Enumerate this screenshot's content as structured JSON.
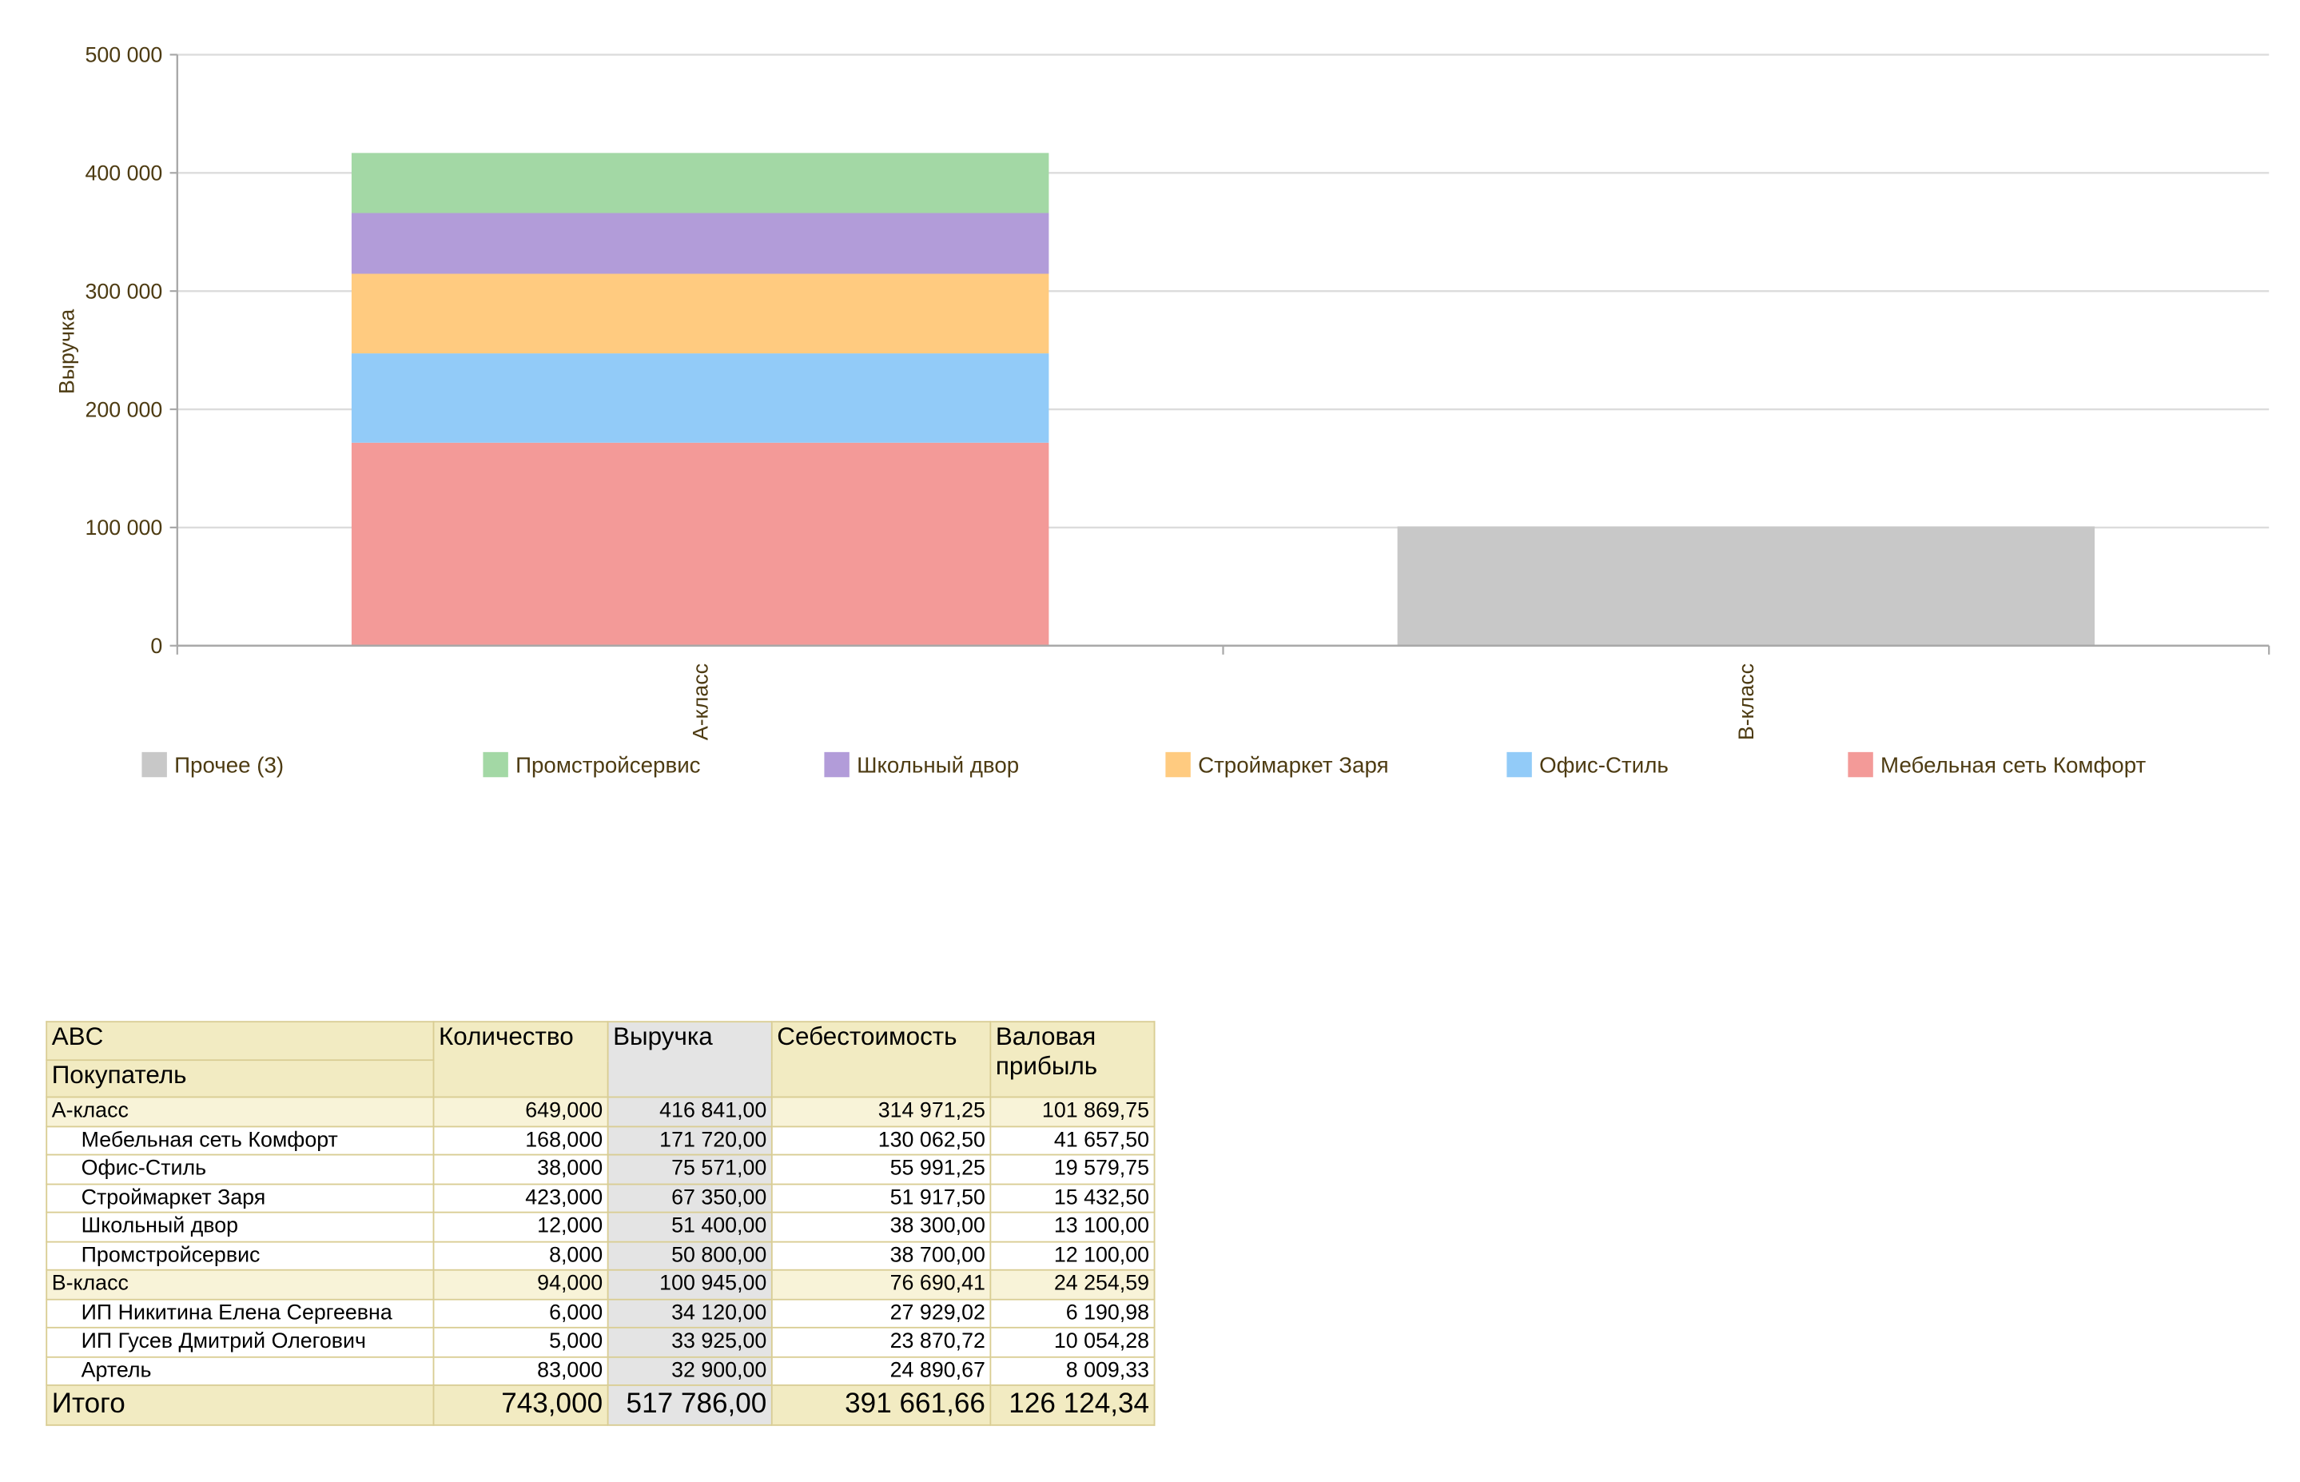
{
  "chart_data": {
    "type": "bar",
    "stacked": true,
    "ylabel": "Выручка",
    "ylim": [
      0,
      500000
    ],
    "yticks": [
      0,
      100000,
      200000,
      300000,
      400000,
      500000
    ],
    "ytick_labels": [
      "0",
      "100 000",
      "200 000",
      "300 000",
      "400 000",
      "500 000"
    ],
    "categories": [
      "А-класс",
      "В-класс"
    ],
    "grid": "horizontal",
    "legend_position": "bottom",
    "series": [
      {
        "name": "Мебельная сеть Комфорт",
        "color": "#f39a98",
        "values": [
          171720,
          0
        ]
      },
      {
        "name": "Офис-Стиль",
        "color": "#92cbf8",
        "values": [
          75571,
          0
        ]
      },
      {
        "name": "Строймаркет Заря",
        "color": "#ffcb80",
        "values": [
          67350,
          0
        ]
      },
      {
        "name": "Школьный двор",
        "color": "#b29cd9",
        "values": [
          51400,
          0
        ]
      },
      {
        "name": "Промстройсервис",
        "color": "#a3d8a5",
        "values": [
          50800,
          0
        ]
      },
      {
        "name": "Прочее (3)",
        "color": "#c8c8c8",
        "values": [
          0,
          100945
        ]
      }
    ],
    "legend_order": [
      "Прочее (3)",
      "Промстройсервис",
      "Школьный двор",
      "Строймаркет Заря",
      "Офис-Стиль",
      "Мебельная сеть Комфорт"
    ]
  },
  "table": {
    "header": {
      "abc": "ABC",
      "buyer": "Покупатель",
      "qty": "Количество",
      "revenue": "Выручка",
      "cost": "Себестоимость",
      "gross_line1": "Валовая",
      "gross_line2": "прибыль"
    },
    "rows": [
      {
        "kind": "group",
        "name": "А-класс",
        "qty": "649,000",
        "revenue": "416 841,00",
        "cost": "314 971,25",
        "gross": "101 869,75"
      },
      {
        "kind": "item",
        "name": "Мебельная сеть Комфорт",
        "qty": "168,000",
        "revenue": "171 720,00",
        "cost": "130 062,50",
        "gross": "41 657,50"
      },
      {
        "kind": "item",
        "name": "Офис-Стиль",
        "qty": "38,000",
        "revenue": "75 571,00",
        "cost": "55 991,25",
        "gross": "19 579,75"
      },
      {
        "kind": "item",
        "name": "Строймаркет Заря",
        "qty": "423,000",
        "revenue": "67 350,00",
        "cost": "51 917,50",
        "gross": "15 432,50"
      },
      {
        "kind": "item",
        "name": "Школьный двор",
        "qty": "12,000",
        "revenue": "51 400,00",
        "cost": "38 300,00",
        "gross": "13 100,00"
      },
      {
        "kind": "item",
        "name": "Промстройсервис",
        "qty": "8,000",
        "revenue": "50 800,00",
        "cost": "38 700,00",
        "gross": "12 100,00"
      },
      {
        "kind": "group",
        "name": "В-класс",
        "qty": "94,000",
        "revenue": "100 945,00",
        "cost": "76 690,41",
        "gross": "24 254,59"
      },
      {
        "kind": "item",
        "name": "ИП Никитина Елена Сергеевна",
        "qty": "6,000",
        "revenue": "34 120,00",
        "cost": "27 929,02",
        "gross": "6 190,98"
      },
      {
        "kind": "item",
        "name": "ИП Гусев Дмитрий Олегович",
        "qty": "5,000",
        "revenue": "33 925,00",
        "cost": "23 870,72",
        "gross": "10 054,28"
      },
      {
        "kind": "item",
        "name": "Артель",
        "qty": "83,000",
        "revenue": "32 900,00",
        "cost": "24 890,67",
        "gross": "8 009,33"
      }
    ],
    "total": {
      "name": "Итого",
      "qty": "743,000",
      "revenue": "517 786,00",
      "cost": "391 661,66",
      "gross": "126 124,34"
    }
  }
}
